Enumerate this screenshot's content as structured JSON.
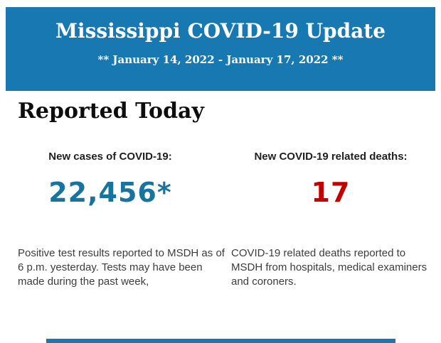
{
  "header": {
    "title": "Mississippi COVID-19 Update",
    "date_range": "** January 14, 2022 - January 17, 2022 **",
    "background_color": "#1879b2",
    "text_color": "#ffffff"
  },
  "section": {
    "heading": "Reported Today"
  },
  "stats": {
    "cases": {
      "label": "New cases of COVID-19:",
      "value": "22,456*",
      "value_color": "#17749e",
      "description": "Positive test results reported to MSDH as of 6 p.m. yesterday. Tests may have been made during the past week,"
    },
    "deaths": {
      "label": "New COVID-19 related deaths:",
      "value": "17",
      "value_color": "#c20000",
      "description": "COVID-19 related deaths reported to MSDH from hospitals, medical examiners and coroners."
    }
  },
  "footer": {
    "bar_color": "#1879b2"
  }
}
